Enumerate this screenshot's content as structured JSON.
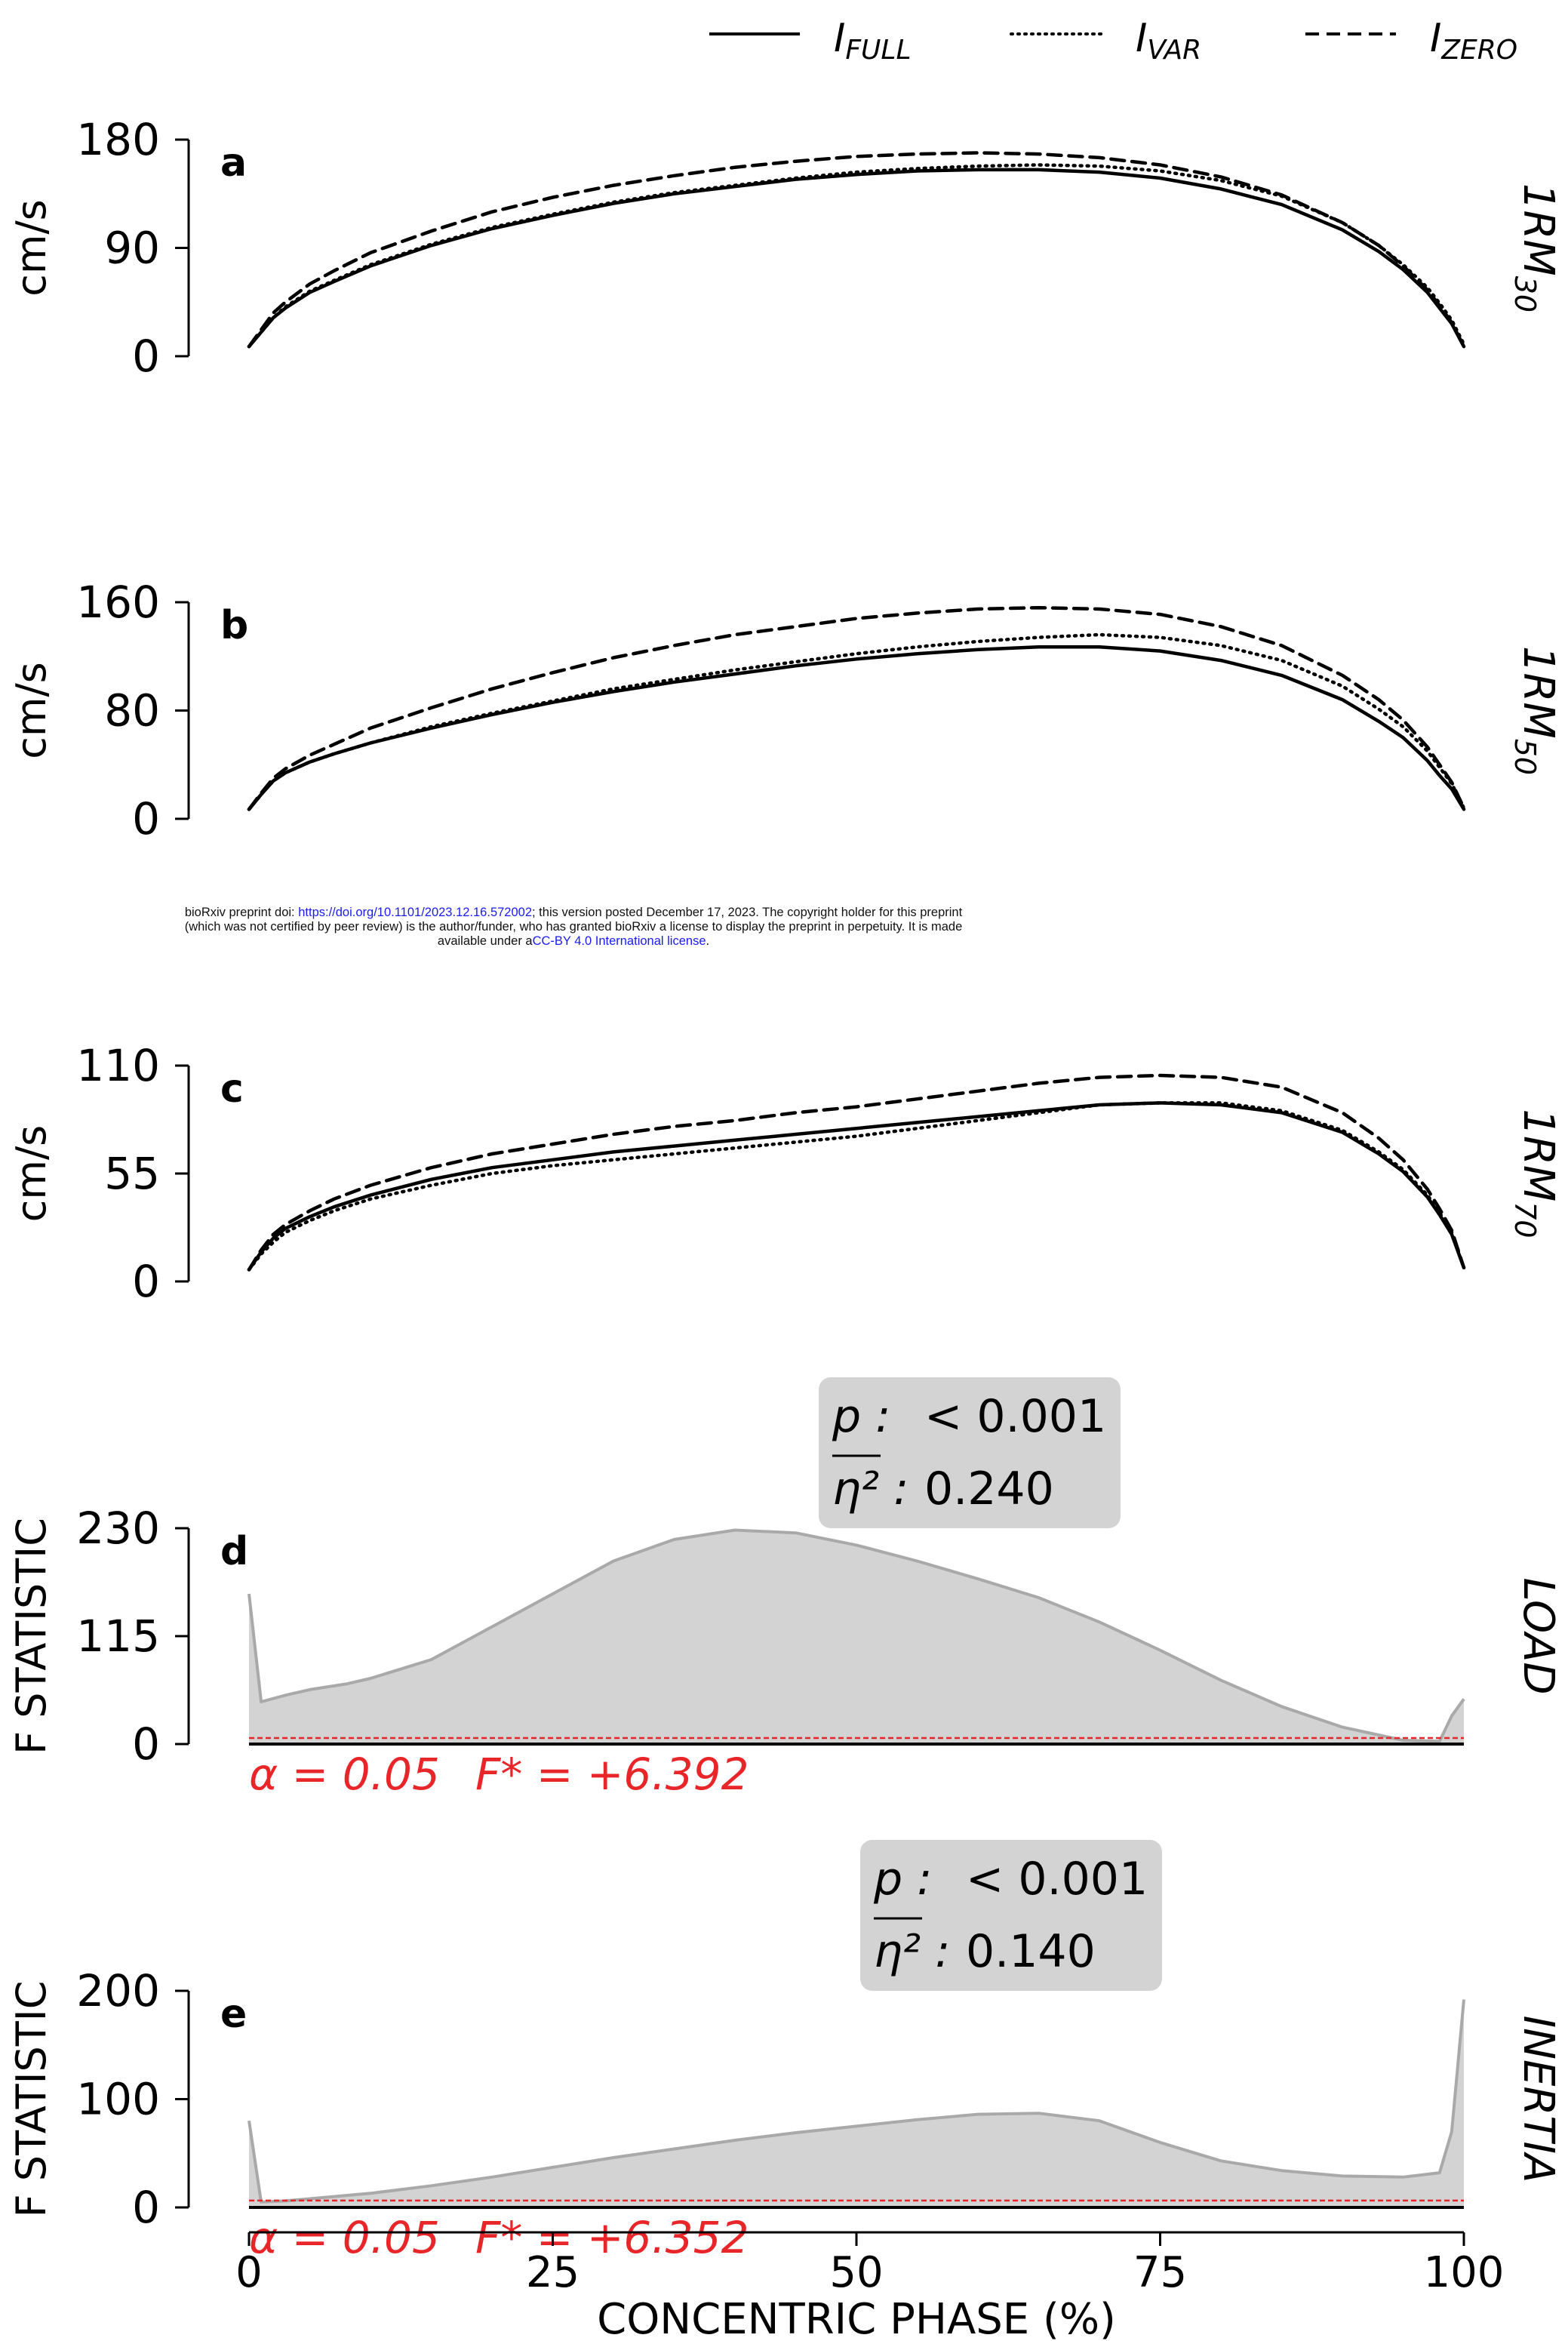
{
  "legend": {
    "position": "top",
    "items": [
      {
        "base": "I",
        "sub": "FULL",
        "dash": "solid"
      },
      {
        "base": "I",
        "sub": "VAR",
        "dash": "dotted"
      },
      {
        "base": "I",
        "sub": "ZERO",
        "dash": "dashed"
      }
    ]
  },
  "notice": {
    "line1_pre": "bioRxiv preprint doi: ",
    "line1_link": "https://doi.org/10.1101/2023.12.16.572002",
    "line1_post": "; this version posted December 17, 2023. The copyright holder for this preprint",
    "line2": "(which was not certified by peer review) is the author/funder, who has granted bioRxiv a license to display the preprint in perpetuity. It is made",
    "line3_pre": "available under a",
    "line3_link": "CC-BY 4.0 International license",
    "line3_post": "."
  },
  "xaxis": {
    "label": "CONCENTRIC PHASE (%)",
    "ticks": [
      "0",
      "25",
      "50",
      "75",
      "100"
    ],
    "range": [
      0,
      100
    ]
  },
  "colors": {
    "line": "#000000",
    "fill": "#d3d3d3",
    "fill_edge": "#a9a9a9",
    "threshold": "#e8262a",
    "stats_box": "#d3d3d3"
  },
  "chart_data": [
    {
      "type": "line",
      "panel": "a",
      "ylabel": "cm/s",
      "right_label_base": "1RM",
      "right_label_sub": "30",
      "yticks": [
        "0",
        "90",
        "180"
      ],
      "ylim": [
        0,
        180
      ],
      "x": [
        0,
        1,
        2,
        3,
        5,
        7,
        10,
        15,
        20,
        25,
        30,
        35,
        40,
        45,
        50,
        55,
        60,
        65,
        70,
        75,
        80,
        85,
        90,
        93,
        95,
        97,
        98,
        99,
        100
      ],
      "series": [
        {
          "name": "I_FULL",
          "dash": "solid",
          "values": [
            8,
            20,
            32,
            40,
            53,
            62,
            75,
            92,
            106,
            117,
            127,
            135,
            141,
            147,
            151,
            154,
            155,
            155,
            153,
            148,
            139,
            126,
            105,
            87,
            72,
            53,
            40,
            27,
            8
          ]
        },
        {
          "name": "I_VAR",
          "dash": "dotted",
          "values": [
            8,
            20,
            32,
            41,
            54,
            63,
            76,
            93,
            107,
            118,
            128,
            136,
            142,
            148,
            153,
            156,
            158,
            159,
            158,
            154,
            146,
            133,
            111,
            92,
            76,
            57,
            44,
            30,
            10
          ]
        },
        {
          "name": "I_ZERO",
          "dash": "dashed",
          "values": [
            8,
            22,
            36,
            45,
            60,
            71,
            86,
            104,
            120,
            132,
            142,
            150,
            157,
            162,
            166,
            168,
            169,
            168,
            165,
            159,
            149,
            134,
            111,
            92,
            75,
            55,
            42,
            28,
            8
          ]
        }
      ]
    },
    {
      "type": "line",
      "panel": "b",
      "ylabel": "cm/s",
      "right_label_base": "1RM",
      "right_label_sub": "50",
      "yticks": [
        "0",
        "80",
        "160"
      ],
      "ylim": [
        0,
        160
      ],
      "x": [
        0,
        1,
        2,
        3,
        5,
        7,
        10,
        15,
        20,
        25,
        30,
        35,
        40,
        45,
        50,
        55,
        60,
        65,
        70,
        75,
        80,
        85,
        90,
        93,
        95,
        97,
        98,
        99,
        100
      ],
      "series": [
        {
          "name": "I_FULL",
          "dash": "solid",
          "values": [
            7,
            18,
            28,
            34,
            42,
            48,
            56,
            67,
            77,
            86,
            94,
            101,
            107,
            113,
            118,
            122,
            125,
            127,
            127,
            124,
            117,
            106,
            88,
            72,
            60,
            43,
            32,
            22,
            7
          ]
        },
        {
          "name": "I_VAR",
          "dash": "dotted",
          "values": [
            7,
            18,
            28,
            34,
            42,
            48,
            56,
            68,
            78,
            87,
            96,
            103,
            110,
            116,
            122,
            127,
            131,
            134,
            136,
            134,
            128,
            117,
            98,
            81,
            68,
            50,
            38,
            26,
            8
          ]
        },
        {
          "name": "I_ZERO",
          "dash": "dashed",
          "values": [
            7,
            19,
            30,
            37,
            47,
            55,
            67,
            82,
            96,
            108,
            119,
            128,
            136,
            142,
            148,
            152,
            155,
            156,
            155,
            151,
            142,
            128,
            106,
            88,
            73,
            53,
            40,
            27,
            8
          ]
        }
      ]
    },
    {
      "type": "line",
      "panel": "c",
      "ylabel": "cm/s",
      "right_label_base": "1RM",
      "right_label_sub": "70",
      "yticks": [
        "0",
        "55",
        "110"
      ],
      "ylim": [
        0,
        110
      ],
      "x": [
        0,
        1,
        2,
        3,
        5,
        7,
        10,
        15,
        20,
        25,
        30,
        35,
        40,
        45,
        50,
        55,
        60,
        65,
        70,
        75,
        80,
        85,
        90,
        93,
        95,
        97,
        98,
        99,
        100
      ],
      "series": [
        {
          "name": "I_FULL",
          "dash": "solid",
          "values": [
            6,
            15,
            22,
            27,
            33,
            38,
            44,
            52,
            58,
            62,
            66,
            69,
            72,
            75,
            78,
            81,
            84,
            87,
            90,
            91,
            90,
            86,
            76,
            65,
            56,
            43,
            34,
            24,
            7
          ]
        },
        {
          "name": "I_VAR",
          "dash": "dotted",
          "values": [
            6,
            14,
            20,
            25,
            31,
            36,
            42,
            49,
            55,
            59,
            62,
            65,
            68,
            71,
            74,
            78,
            82,
            86,
            90,
            91,
            91,
            87,
            77,
            66,
            57,
            44,
            35,
            25,
            7
          ]
        },
        {
          "name": "I_ZERO",
          "dash": "dashed",
          "values": [
            6,
            16,
            24,
            29,
            36,
            42,
            49,
            58,
            65,
            70,
            75,
            79,
            82,
            86,
            89,
            93,
            97,
            101,
            104,
            105,
            104,
            99,
            86,
            73,
            62,
            47,
            37,
            26,
            7
          ]
        }
      ]
    },
    {
      "type": "area",
      "panel": "d",
      "ylabel": "F STATISTIC",
      "right_label": "LOAD",
      "yticks": [
        "0",
        "115",
        "230"
      ],
      "ylim": [
        0,
        230
      ],
      "x": [
        0,
        1,
        3,
        5,
        8,
        10,
        15,
        20,
        25,
        30,
        35,
        40,
        45,
        50,
        55,
        60,
        65,
        70,
        75,
        80,
        85,
        90,
        95,
        98,
        99,
        100
      ],
      "values": [
        160,
        45,
        52,
        58,
        64,
        70,
        90,
        125,
        160,
        195,
        218,
        228,
        225,
        212,
        195,
        176,
        156,
        130,
        100,
        68,
        40,
        18,
        4,
        3,
        30,
        48
      ],
      "threshold": 6.392,
      "alpha_label": "α = 0.05",
      "fstar_label": "F* = +6.392",
      "stats": {
        "p_label": "p :",
        "p_value": "< 0.001",
        "eta_label": "η² :",
        "eta_value": "0.240"
      }
    },
    {
      "type": "area",
      "panel": "e",
      "ylabel": "F STATISTIC",
      "right_label": "INERTIA",
      "yticks": [
        "0",
        "100",
        "200"
      ],
      "ylim": [
        0,
        200
      ],
      "x": [
        0,
        1,
        3,
        5,
        10,
        15,
        20,
        25,
        30,
        35,
        40,
        45,
        50,
        55,
        60,
        65,
        70,
        75,
        80,
        85,
        90,
        95,
        98,
        99,
        100
      ],
      "values": [
        80,
        5,
        6,
        8,
        13,
        20,
        28,
        37,
        46,
        54,
        62,
        69,
        75,
        81,
        86,
        87,
        80,
        60,
        43,
        34,
        29,
        28,
        32,
        70,
        192
      ],
      "threshold": 6.352,
      "alpha_label": "α = 0.05",
      "fstar_label": "F* = +6.352",
      "stats": {
        "p_label": "p :",
        "p_value": "< 0.001",
        "eta_label": "η² :",
        "eta_value": "0.140"
      }
    }
  ]
}
